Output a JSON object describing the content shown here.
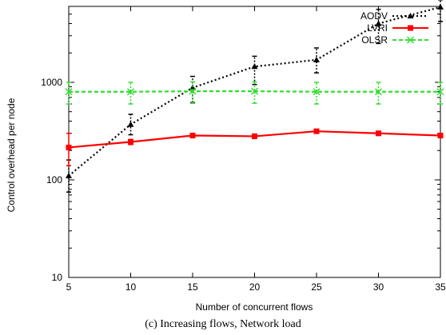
{
  "caption": "(c) Increasing flows, Network load",
  "chart_data": {
    "type": "line",
    "xlabel": "Number of concurrent flows",
    "ylabel": "Control overhead per node",
    "x": [
      5,
      10,
      15,
      20,
      25,
      30,
      35
    ],
    "xlim": [
      5,
      35
    ],
    "ylim": [
      10,
      6000
    ],
    "yscale": "log",
    "xticks": [
      "5",
      "10",
      "15",
      "20",
      "25",
      "30",
      "35"
    ],
    "yticks": [
      10,
      100,
      1000
    ],
    "ytick_labels": [
      "10",
      "100",
      "1000"
    ],
    "grid": false,
    "legend_position": "top-right",
    "series": [
      {
        "name": "AODV",
        "color": "#000000",
        "marker": "triangle",
        "dash": "dotted",
        "values": [
          110,
          370,
          880,
          1450,
          1700,
          4000,
          5900
        ],
        "err_low": [
          75,
          290,
          620,
          950,
          1250,
          2500,
          4200
        ],
        "err_high": [
          160,
          470,
          1150,
          1850,
          2250,
          5600,
          7000
        ]
      },
      {
        "name": "LVRI",
        "color": "#ff0000",
        "marker": "square",
        "dash": "solid",
        "values": [
          215,
          245,
          285,
          280,
          315,
          300,
          285
        ],
        "err_low": [
          140,
          230,
          270,
          265,
          300,
          285,
          270
        ],
        "err_high": [
          300,
          260,
          300,
          295,
          330,
          315,
          300
        ]
      },
      {
        "name": "OLSR",
        "color": "#33dd33",
        "marker": "x",
        "dash": "dashed",
        "values": [
          800,
          800,
          810,
          810,
          800,
          800,
          800
        ],
        "err_low": [
          600,
          600,
          610,
          610,
          600,
          600,
          600
        ],
        "err_high": [
          1000,
          1000,
          1010,
          1010,
          1000,
          1000,
          1000
        ]
      }
    ]
  }
}
